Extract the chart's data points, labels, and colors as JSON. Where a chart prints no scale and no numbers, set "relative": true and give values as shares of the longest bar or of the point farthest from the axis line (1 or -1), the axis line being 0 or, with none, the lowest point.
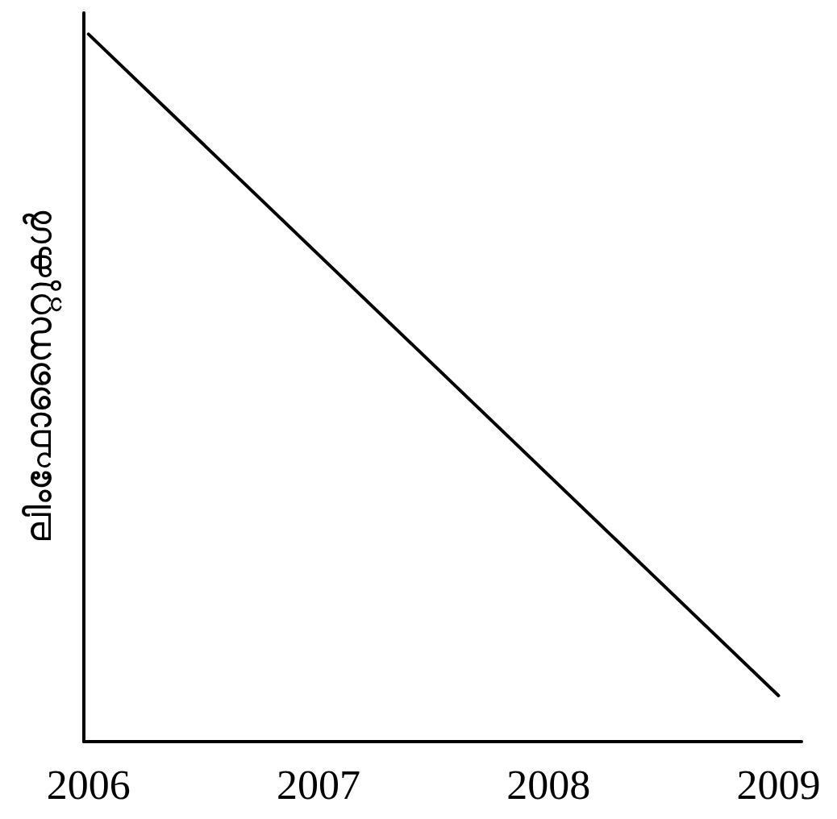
{
  "chart_data": {
    "type": "line",
    "ylabel": "ലിംഫോസൈറ്റുകൾ",
    "relative": true,
    "x": [
      2006,
      2009
    ],
    "xlim": [
      2005.98,
      2009.1
    ],
    "xticks": [
      2006,
      2007,
      2008,
      2009
    ],
    "series": [
      {
        "color": "#000000",
        "values": [
          1,
          0.065
        ]
      }
    ],
    "grid": false,
    "marker": "none",
    "line_style": "solid"
  }
}
